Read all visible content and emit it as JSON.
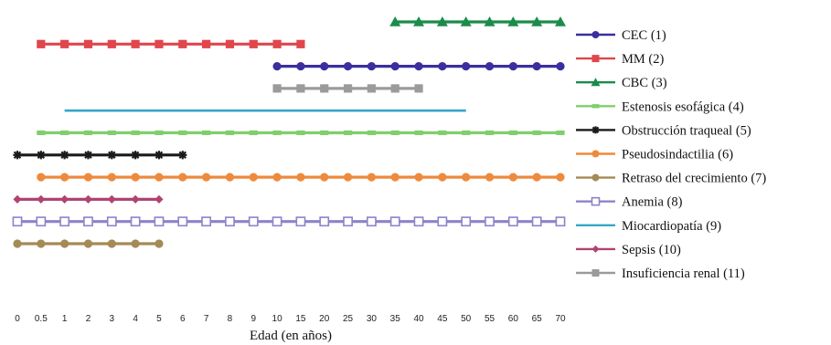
{
  "chart_data": {
    "type": "line",
    "title": "",
    "xlabel": "Edad (en años)",
    "ylabel": "",
    "x_ticks": [
      "0",
      "0.5",
      "1",
      "2",
      "3",
      "4",
      "5",
      "6",
      "7",
      "8",
      "9",
      "10",
      "15",
      "20",
      "25",
      "30",
      "35",
      "40",
      "45",
      "50",
      "55",
      "60",
      "65",
      "70"
    ],
    "grid": false,
    "legend_position": "right",
    "series": [
      {
        "name": "CEC (1)",
        "color": "#3a2f9e",
        "marker": "circle",
        "points": [
          "10",
          "15",
          "20",
          "25",
          "30",
          "35",
          "40",
          "45",
          "50",
          "55",
          "60",
          "65",
          "70"
        ]
      },
      {
        "name": "MM (2)",
        "color": "#e0464b",
        "marker": "square",
        "points": [
          "0.5",
          "1",
          "2",
          "3",
          "4",
          "5",
          "6",
          "7",
          "8",
          "9",
          "10",
          "15"
        ]
      },
      {
        "name": "CBC (3)",
        "color": "#1b8c4a",
        "marker": "triangle",
        "points": [
          "35",
          "40",
          "45",
          "50",
          "55",
          "60",
          "65",
          "70"
        ]
      },
      {
        "name": "Estenosis esofágica (4)",
        "color": "#7fcf6a",
        "marker": "dash",
        "points": [
          "0.5",
          "1",
          "2",
          "3",
          "4",
          "5",
          "6",
          "7",
          "8",
          "9",
          "10",
          "15",
          "20",
          "25",
          "30",
          "35",
          "40",
          "45",
          "50",
          "55",
          "60",
          "65",
          "70"
        ]
      },
      {
        "name": "Obstrucción traqueal (5)",
        "color": "#1a1a1a",
        "marker": "star",
        "points": [
          "0",
          "0.5",
          "1",
          "2",
          "3",
          "4",
          "5",
          "6"
        ]
      },
      {
        "name": "Pseudosindactilia (6)",
        "color": "#ee8a3c",
        "marker": "circle",
        "points": [
          "0.5",
          "1",
          "2",
          "3",
          "4",
          "5",
          "6",
          "7",
          "8",
          "9",
          "10",
          "15",
          "20",
          "25",
          "30",
          "35",
          "40",
          "45",
          "50",
          "55",
          "60",
          "65",
          "70"
        ]
      },
      {
        "name": "Retraso del crecimiento (7)",
        "color": "#a48a56",
        "marker": "circle",
        "points": [
          "0",
          "0.5",
          "1",
          "2",
          "3",
          "4",
          "5"
        ]
      },
      {
        "name": "Anemia (8)",
        "color": "#8b84c8",
        "marker": "open-square",
        "points": [
          "0",
          "0.5",
          "1",
          "2",
          "3",
          "4",
          "5",
          "6",
          "7",
          "8",
          "9",
          "10",
          "15",
          "20",
          "25",
          "30",
          "35",
          "40",
          "45",
          "50",
          "55",
          "60",
          "65",
          "70"
        ]
      },
      {
        "name": "Miocardiopatía (9)",
        "color": "#34a7c7",
        "marker": "none",
        "points": [
          "1",
          "50"
        ]
      },
      {
        "name": "Sepsis (10)",
        "color": "#b0446f",
        "marker": "diamond",
        "points": [
          "0",
          "0.5",
          "1",
          "2",
          "3",
          "4",
          "5"
        ]
      },
      {
        "name": "Insuficiencia renal (11)",
        "color": "#9b9b9b",
        "marker": "square",
        "points": [
          "10",
          "15",
          "20",
          "25",
          "30",
          "35",
          "40"
        ]
      }
    ],
    "row_order_top_to_bottom": [
      3,
      2,
      1,
      11,
      9,
      4,
      5,
      6,
      10,
      8,
      7
    ]
  }
}
